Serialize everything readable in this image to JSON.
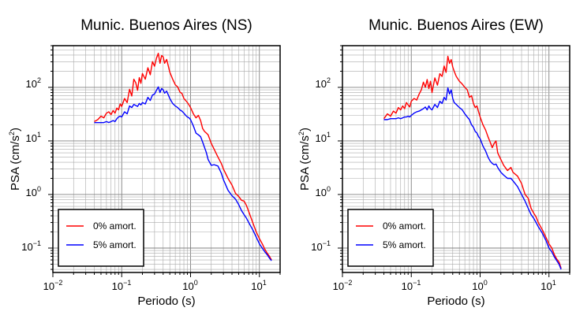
{
  "chart_data": [
    {
      "type": "line",
      "title": "Munic. Buenos Aires (NS)",
      "xlabel": "Periodo (s)",
      "ylabel_prefix": "PSA (cm/s",
      "ylabel_sup": "2",
      "ylabel_suffix": ")",
      "x_scale": "log",
      "y_scale": "log",
      "xlim": [
        0.01,
        20
      ],
      "ylim": [
        0.035,
        600
      ],
      "grid": true,
      "legend_position": "bottom-left",
      "x_ticks": [
        {
          "base": "10",
          "exp": "−2"
        },
        {
          "base": "10",
          "exp": "−1"
        },
        {
          "base": "10",
          "exp": "0"
        },
        {
          "base": "10",
          "exp": "1"
        }
      ],
      "y_ticks": [
        {
          "base": "10",
          "exp": "−1"
        },
        {
          "base": "10",
          "exp": "0"
        },
        {
          "base": "10",
          "exp": "1"
        },
        {
          "base": "10",
          "exp": "2"
        }
      ],
      "series": [
        {
          "name": "0% amort.",
          "color": "#ff0000",
          "x": [
            0.04,
            0.045,
            0.05,
            0.055,
            0.06,
            0.065,
            0.07,
            0.075,
            0.08,
            0.085,
            0.09,
            0.095,
            0.1,
            0.11,
            0.12,
            0.13,
            0.14,
            0.15,
            0.16,
            0.17,
            0.18,
            0.19,
            0.2,
            0.22,
            0.24,
            0.26,
            0.28,
            0.3,
            0.32,
            0.34,
            0.36,
            0.38,
            0.4,
            0.42,
            0.45,
            0.5,
            0.55,
            0.6,
            0.65,
            0.7,
            0.75,
            0.8,
            0.85,
            0.9,
            0.95,
            1.0,
            1.1,
            1.2,
            1.3,
            1.4,
            1.5,
            1.6,
            1.7,
            1.8,
            2.0,
            2.2,
            2.5,
            2.8,
            3.0,
            3.5,
            4.0,
            4.5,
            5.0,
            5.5,
            6.0,
            6.5,
            7.0,
            8.0,
            9.0,
            10.0,
            11.0,
            12.0,
            13.0,
            14.0,
            15.0
          ],
          "y": [
            23,
            25,
            29,
            27,
            33,
            35,
            31,
            37,
            33,
            41,
            38,
            49,
            44,
            62,
            52,
            92,
            69,
            142,
            122,
            88,
            152,
            119,
            181,
            142,
            232,
            172,
            302,
            248,
            352,
            432,
            282,
            392,
            372,
            282,
            332,
            192,
            142,
            112,
            102,
            82,
            77,
            62,
            57,
            52,
            47,
            42,
            32,
            27,
            30,
            24,
            17,
            15,
            14,
            13,
            9,
            7,
            5,
            3.8,
            3.0,
            2.0,
            1.5,
            1.05,
            0.92,
            0.78,
            0.75,
            0.62,
            0.48,
            0.3,
            0.2,
            0.15,
            0.12,
            0.095,
            0.08,
            0.07,
            0.06
          ]
        },
        {
          "name": "5% amort.",
          "color": "#0000ff",
          "x": [
            0.04,
            0.045,
            0.05,
            0.055,
            0.06,
            0.065,
            0.07,
            0.075,
            0.08,
            0.085,
            0.09,
            0.095,
            0.1,
            0.11,
            0.12,
            0.13,
            0.14,
            0.15,
            0.16,
            0.17,
            0.18,
            0.19,
            0.2,
            0.22,
            0.24,
            0.26,
            0.28,
            0.3,
            0.32,
            0.34,
            0.36,
            0.38,
            0.4,
            0.42,
            0.45,
            0.5,
            0.55,
            0.6,
            0.65,
            0.7,
            0.75,
            0.8,
            0.85,
            0.9,
            0.95,
            1.0,
            1.1,
            1.2,
            1.3,
            1.4,
            1.5,
            1.6,
            1.7,
            1.8,
            2.0,
            2.2,
            2.5,
            2.8,
            3.0,
            3.5,
            4.0,
            4.5,
            5.0,
            5.5,
            6.0,
            6.5,
            7.0,
            8.0,
            9.0,
            10.0,
            11.0,
            12.0,
            13.0,
            14.0,
            15.0
          ],
          "y": [
            22,
            22,
            22,
            22,
            23,
            22,
            23,
            24,
            23,
            26,
            28,
            29,
            28,
            35,
            32,
            45,
            42,
            48,
            46,
            44,
            50,
            47,
            52,
            49,
            65,
            57,
            72,
            75,
            88,
            102,
            80,
            95,
            90,
            78,
            85,
            62,
            50,
            45,
            42,
            38,
            36,
            33,
            30,
            28,
            27,
            25,
            19,
            14,
            13,
            12,
            9.5,
            7.5,
            6,
            4.5,
            3.5,
            3.6,
            3.4,
            2.5,
            1.9,
            1.2,
            0.95,
            0.82,
            0.65,
            0.5,
            0.42,
            0.36,
            0.3,
            0.22,
            0.16,
            0.12,
            0.1,
            0.085,
            0.075,
            0.065,
            0.058
          ]
        }
      ]
    },
    {
      "type": "line",
      "title": "Munic. Buenos Aires (EW)",
      "xlabel": "Periodo (s)",
      "ylabel_prefix": "PSA (cm/s",
      "ylabel_sup": "2",
      "ylabel_suffix": ")",
      "x_scale": "log",
      "y_scale": "log",
      "xlim": [
        0.01,
        20
      ],
      "ylim": [
        0.035,
        600
      ],
      "grid": true,
      "legend_position": "bottom-left",
      "x_ticks": [
        {
          "base": "10",
          "exp": "−2"
        },
        {
          "base": "10",
          "exp": "−1"
        },
        {
          "base": "10",
          "exp": "0"
        },
        {
          "base": "10",
          "exp": "1"
        }
      ],
      "y_ticks": [
        {
          "base": "10",
          "exp": "−1"
        },
        {
          "base": "10",
          "exp": "0"
        },
        {
          "base": "10",
          "exp": "1"
        },
        {
          "base": "10",
          "exp": "2"
        }
      ],
      "series": [
        {
          "name": "0% amort.",
          "color": "#ff0000",
          "x": [
            0.04,
            0.045,
            0.05,
            0.055,
            0.06,
            0.065,
            0.07,
            0.075,
            0.08,
            0.085,
            0.09,
            0.095,
            0.1,
            0.11,
            0.12,
            0.13,
            0.14,
            0.15,
            0.16,
            0.17,
            0.18,
            0.19,
            0.2,
            0.22,
            0.24,
            0.26,
            0.28,
            0.3,
            0.32,
            0.34,
            0.36,
            0.38,
            0.4,
            0.42,
            0.45,
            0.5,
            0.55,
            0.6,
            0.65,
            0.7,
            0.75,
            0.8,
            0.85,
            0.9,
            0.95,
            1.0,
            1.1,
            1.2,
            1.3,
            1.4,
            1.5,
            1.6,
            1.7,
            1.8,
            2.0,
            2.2,
            2.5,
            2.8,
            3.0,
            3.5,
            4.0,
            4.5,
            5.0,
            5.5,
            6.0,
            6.5,
            7.0,
            8.0,
            9.0,
            10.0,
            11.0,
            12.0,
            13.0,
            14.0,
            15.0
          ],
          "y": [
            26,
            32,
            29,
            36,
            33,
            42,
            38,
            45,
            40,
            52,
            47,
            43,
            55,
            62,
            58,
            75,
            90,
            125,
            100,
            140,
            95,
            130,
            80,
            150,
            110,
            180,
            160,
            250,
            190,
            380,
            280,
            330,
            240,
            200,
            160,
            130,
            115,
            100,
            90,
            65,
            70,
            50,
            42,
            45,
            35,
            28,
            20,
            16,
            12,
            9.5,
            7.5,
            9,
            10,
            6,
            4.5,
            3.5,
            2.8,
            3.2,
            2.6,
            2.2,
            1.6,
            1.0,
            0.85,
            0.55,
            0.45,
            0.38,
            0.3,
            0.22,
            0.16,
            0.12,
            0.1,
            0.075,
            0.062,
            0.055,
            0.042
          ]
        },
        {
          "name": "5% amort.",
          "color": "#0000ff",
          "x": [
            0.04,
            0.045,
            0.05,
            0.055,
            0.06,
            0.065,
            0.07,
            0.075,
            0.08,
            0.085,
            0.09,
            0.095,
            0.1,
            0.11,
            0.12,
            0.13,
            0.14,
            0.15,
            0.16,
            0.17,
            0.18,
            0.19,
            0.2,
            0.22,
            0.24,
            0.26,
            0.28,
            0.3,
            0.32,
            0.34,
            0.36,
            0.38,
            0.4,
            0.42,
            0.45,
            0.5,
            0.55,
            0.6,
            0.65,
            0.7,
            0.75,
            0.8,
            0.85,
            0.9,
            0.95,
            1.0,
            1.1,
            1.2,
            1.3,
            1.4,
            1.5,
            1.6,
            1.7,
            1.8,
            2.0,
            2.2,
            2.5,
            2.8,
            3.0,
            3.5,
            4.0,
            4.5,
            5.0,
            5.5,
            6.0,
            6.5,
            7.0,
            8.0,
            9.0,
            10.0,
            11.0,
            12.0,
            13.0,
            14.0,
            15.0
          ],
          "y": [
            25,
            25,
            26,
            26,
            26,
            27,
            26,
            27,
            28,
            28,
            29,
            28,
            30,
            33,
            35,
            36,
            38,
            40,
            43,
            38,
            45,
            40,
            38,
            48,
            42,
            55,
            50,
            65,
            58,
            98,
            75,
            90,
            62,
            52,
            48,
            42,
            38,
            32,
            28,
            25,
            20,
            18,
            15,
            14,
            12,
            11,
            8,
            6.5,
            5,
            4.2,
            3.8,
            3.6,
            3.7,
            3.2,
            2.6,
            2.3,
            2.0,
            2.0,
            1.8,
            1.4,
            1.0,
            0.75,
            0.55,
            0.42,
            0.36,
            0.3,
            0.25,
            0.19,
            0.14,
            0.1,
            0.085,
            0.068,
            0.058,
            0.05,
            0.04
          ]
        }
      ]
    }
  ]
}
